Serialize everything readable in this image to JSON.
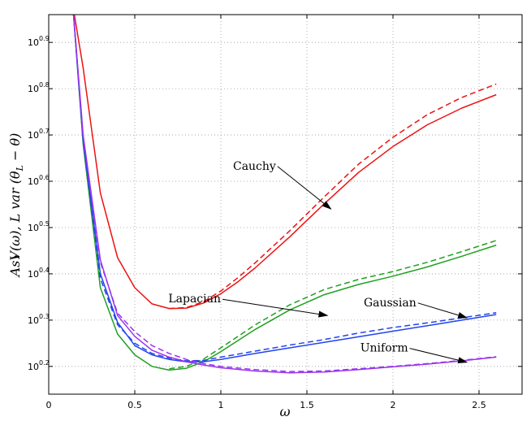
{
  "chart_data": {
    "type": "line",
    "title": "",
    "xlabel": "ω",
    "ylabel": "AsV(ω), L var (θ̂_L − θ)",
    "ylabel_parts": {
      "main": "AsV(ω), L var (",
      "theta_hat": "θ",
      "hat": "^",
      "sub": "L",
      "rest": " − θ)"
    },
    "xlim": [
      0,
      2.75
    ],
    "ylim": [
      10.14,
      10.96
    ],
    "yscale": "log10",
    "grid": true,
    "x_ticks": [
      0,
      0.5,
      1,
      1.5,
      2,
      2.5
    ],
    "x_tick_labels": [
      "0",
      "0.5",
      "1",
      "1.5",
      "2",
      "2.5"
    ],
    "y_ticks": [
      10.2,
      10.3,
      10.4,
      10.5,
      10.6,
      10.7,
      10.8,
      10.9
    ],
    "y_tick_labels": [
      {
        "base": "10",
        "exp": "0.2"
      },
      {
        "base": "10",
        "exp": "0.3"
      },
      {
        "base": "10",
        "exp": "0.4"
      },
      {
        "base": "10",
        "exp": "0.5"
      },
      {
        "base": "10",
        "exp": "0.6"
      },
      {
        "base": "10",
        "exp": "0.7"
      },
      {
        "base": "10",
        "exp": "0.8"
      },
      {
        "base": "10",
        "exp": "0.9"
      }
    ],
    "series": [
      {
        "name": "Cauchy",
        "color": "#ee1111",
        "dash": false,
        "points": [
          [
            0.14,
            10.98
          ],
          [
            0.2,
            10.845
          ],
          [
            0.3,
            10.575
          ],
          [
            0.4,
            10.435
          ],
          [
            0.5,
            10.37
          ],
          [
            0.6,
            10.335
          ],
          [
            0.7,
            10.325
          ],
          [
            0.8,
            10.326
          ],
          [
            0.9,
            10.337
          ],
          [
            1.0,
            10.357
          ],
          [
            1.1,
            10.383
          ],
          [
            1.2,
            10.413
          ],
          [
            1.4,
            10.48
          ],
          [
            1.6,
            10.551
          ],
          [
            1.8,
            10.619
          ],
          [
            2.0,
            10.675
          ],
          [
            2.2,
            10.722
          ],
          [
            2.4,
            10.758
          ],
          [
            2.6,
            10.787
          ]
        ]
      },
      {
        "name": "Cauchy",
        "color": "#ee1111",
        "dash": true,
        "points": [
          [
            0.7,
            10.325
          ],
          [
            0.8,
            10.327
          ],
          [
            0.9,
            10.34
          ],
          [
            1.0,
            10.363
          ],
          [
            1.1,
            10.392
          ],
          [
            1.2,
            10.424
          ],
          [
            1.4,
            10.493
          ],
          [
            1.6,
            10.566
          ],
          [
            1.8,
            10.637
          ],
          [
            2.0,
            10.695
          ],
          [
            2.2,
            10.744
          ],
          [
            2.4,
            10.781
          ],
          [
            2.6,
            10.81
          ]
        ]
      },
      {
        "name": "Lapacian",
        "color": "#20a020",
        "dash": false,
        "points": [
          [
            0.14,
            10.98
          ],
          [
            0.2,
            10.68
          ],
          [
            0.3,
            10.37
          ],
          [
            0.4,
            10.27
          ],
          [
            0.5,
            10.225
          ],
          [
            0.6,
            10.2
          ],
          [
            0.7,
            10.192
          ],
          [
            0.8,
            10.196
          ],
          [
            0.9,
            10.21
          ],
          [
            1.0,
            10.232
          ],
          [
            1.2,
            10.28
          ],
          [
            1.4,
            10.322
          ],
          [
            1.6,
            10.355
          ],
          [
            1.8,
            10.377
          ],
          [
            2.0,
            10.395
          ],
          [
            2.2,
            10.415
          ],
          [
            2.4,
            10.438
          ],
          [
            2.6,
            10.462
          ]
        ]
      },
      {
        "name": "Lapacian",
        "color": "#20a020",
        "dash": true,
        "points": [
          [
            0.7,
            10.195
          ],
          [
            0.8,
            10.2
          ],
          [
            0.9,
            10.216
          ],
          [
            1.0,
            10.24
          ],
          [
            1.2,
            10.29
          ],
          [
            1.4,
            10.333
          ],
          [
            1.6,
            10.366
          ],
          [
            1.8,
            10.388
          ],
          [
            2.0,
            10.405
          ],
          [
            2.2,
            10.425
          ],
          [
            2.4,
            10.448
          ],
          [
            2.6,
            10.472
          ]
        ]
      },
      {
        "name": "Gaussian",
        "color": "#2244ee",
        "dash": false,
        "points": [
          [
            0.14,
            10.98
          ],
          [
            0.2,
            10.69
          ],
          [
            0.3,
            10.4
          ],
          [
            0.4,
            10.295
          ],
          [
            0.5,
            10.245
          ],
          [
            0.6,
            10.225
          ],
          [
            0.7,
            10.215
          ],
          [
            0.8,
            10.21
          ],
          [
            0.9,
            10.21
          ],
          [
            1.0,
            10.215
          ],
          [
            1.2,
            10.228
          ],
          [
            1.4,
            10.24
          ],
          [
            1.6,
            10.252
          ],
          [
            1.8,
            10.264
          ],
          [
            2.0,
            10.276
          ],
          [
            2.2,
            10.288
          ],
          [
            2.4,
            10.3
          ],
          [
            2.6,
            10.312
          ]
        ]
      },
      {
        "name": "Gaussian",
        "color": "#2244ee",
        "dash": true,
        "points": [
          [
            0.14,
            10.98
          ],
          [
            0.2,
            10.685
          ],
          [
            0.3,
            10.39
          ],
          [
            0.4,
            10.29
          ],
          [
            0.5,
            10.25
          ],
          [
            0.6,
            10.228
          ],
          [
            0.7,
            10.218
          ],
          [
            0.8,
            10.212
          ],
          [
            0.9,
            10.213
          ],
          [
            1.0,
            10.22
          ],
          [
            1.2,
            10.233
          ],
          [
            1.4,
            10.246
          ],
          [
            1.6,
            10.258
          ],
          [
            1.8,
            10.272
          ],
          [
            2.0,
            10.284
          ],
          [
            2.2,
            10.294
          ],
          [
            2.4,
            10.305
          ],
          [
            2.6,
            10.316
          ]
        ]
      },
      {
        "name": "Uniform",
        "color": "#9933ee",
        "dash": false,
        "points": [
          [
            0.14,
            10.98
          ],
          [
            0.2,
            10.7
          ],
          [
            0.3,
            10.43
          ],
          [
            0.4,
            10.31
          ],
          [
            0.5,
            10.265
          ],
          [
            0.6,
            10.235
          ],
          [
            0.7,
            10.22
          ],
          [
            0.8,
            10.21
          ],
          [
            0.9,
            10.203
          ],
          [
            1.0,
            10.197
          ],
          [
            1.2,
            10.19
          ],
          [
            1.4,
            10.186
          ],
          [
            1.6,
            10.188
          ],
          [
            1.8,
            10.193
          ],
          [
            2.0,
            10.199
          ],
          [
            2.2,
            10.205
          ],
          [
            2.4,
            10.212
          ],
          [
            2.6,
            10.22
          ]
        ]
      },
      {
        "name": "Uniform",
        "color": "#9933ee",
        "dash": true,
        "points": [
          [
            0.14,
            10.98
          ],
          [
            0.2,
            10.695
          ],
          [
            0.3,
            10.425
          ],
          [
            0.4,
            10.315
          ],
          [
            0.5,
            10.275
          ],
          [
            0.6,
            10.245
          ],
          [
            0.7,
            10.228
          ],
          [
            0.8,
            10.215
          ],
          [
            0.9,
            10.206
          ],
          [
            1.0,
            10.2
          ],
          [
            1.2,
            10.193
          ],
          [
            1.4,
            10.189
          ],
          [
            1.6,
            10.19
          ],
          [
            1.8,
            10.195
          ],
          [
            2.0,
            10.2
          ],
          [
            2.2,
            10.206
          ],
          [
            2.4,
            10.213
          ],
          [
            2.6,
            10.221
          ]
        ]
      }
    ],
    "annotations": [
      {
        "text": "Cauchy",
        "anchor": "end",
        "label_at": [
          1.32,
          10.625
        ],
        "arrow_to": [
          1.64,
          10.54
        ]
      },
      {
        "text": "Lapacian",
        "anchor": "end",
        "label_at": [
          1.0,
          10.338
        ],
        "arrow_to": [
          1.62,
          10.31
        ]
      },
      {
        "text": "Gaussian",
        "anchor": "start",
        "label_at": [
          1.83,
          10.33
        ],
        "arrow_to": [
          2.43,
          10.305
        ]
      },
      {
        "text": "Uniform",
        "anchor": "start",
        "label_at": [
          1.81,
          10.232
        ],
        "arrow_to": [
          2.43,
          10.209
        ]
      }
    ]
  }
}
